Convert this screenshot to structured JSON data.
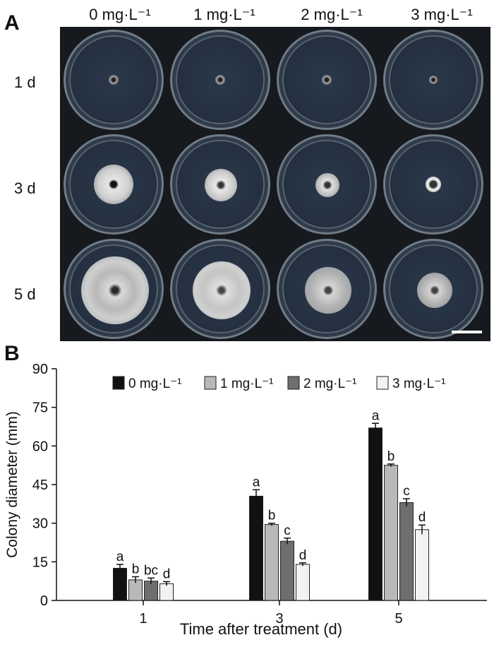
{
  "panel_a": {
    "label": "A",
    "columns": [
      "0 mg·L⁻¹",
      "1 mg·L⁻¹",
      "2 mg·L⁻¹",
      "3 mg·L⁻¹"
    ],
    "rows": [
      "1 d",
      "3 d",
      "5 d"
    ],
    "dish_colors": {
      "agar": "#243040",
      "rim": "#6f7b86",
      "colony": "#c8c8c8"
    }
  },
  "panel_b": {
    "label": "B"
  },
  "chart_data": {
    "type": "bar",
    "categories": [
      "1",
      "3",
      "5"
    ],
    "xlabel": "Time after treatment (d)",
    "ylabel": "Colony diameter (mm)",
    "ylim": [
      0,
      90
    ],
    "yticks": [
      0,
      15,
      30,
      45,
      60,
      75,
      90
    ],
    "grid": false,
    "legend_position": "top",
    "series": [
      {
        "name": "0 mg·L⁻¹",
        "color": "#111111",
        "values": [
          12.5,
          40.5,
          67.0
        ],
        "errors": [
          1.5,
          2.5,
          1.8
        ],
        "letters": [
          "a",
          "a",
          "a"
        ]
      },
      {
        "name": "1 mg·L⁻¹",
        "color": "#b9b9b9",
        "values": [
          8.0,
          29.5,
          52.5
        ],
        "errors": [
          1.2,
          0.5,
          0.5
        ],
        "letters": [
          "b",
          "b",
          "b"
        ]
      },
      {
        "name": "2 mg·L⁻¹",
        "color": "#6e6e6e",
        "values": [
          7.5,
          23.0,
          38.0
        ],
        "errors": [
          1.2,
          1.2,
          1.5
        ],
        "letters": [
          "bc",
          "c",
          "c"
        ]
      },
      {
        "name": "3 mg·L⁻¹",
        "color": "#f2f2f2",
        "values": [
          6.5,
          14.0,
          27.5
        ],
        "errors": [
          0.8,
          0.6,
          1.8
        ],
        "letters": [
          "d",
          "d",
          "d"
        ]
      }
    ]
  }
}
